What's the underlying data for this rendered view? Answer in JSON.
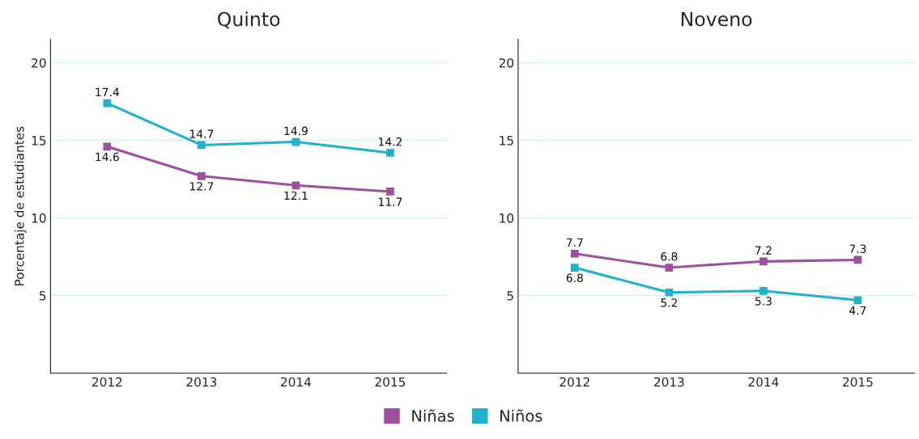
{
  "chart_data": [
    {
      "type": "line",
      "title": "Quinto",
      "ylabel": "Porcentaje de estudiantes",
      "categories": [
        "2012",
        "2013",
        "2014",
        "2015"
      ],
      "series": [
        {
          "name": "Niñas",
          "color": "#9c519c",
          "values": [
            14.6,
            12.7,
            12.1,
            11.7
          ]
        },
        {
          "name": "Niños",
          "color": "#20b2cb",
          "values": [
            17.4,
            14.7,
            14.9,
            14.2
          ]
        }
      ],
      "ylim": [
        0,
        21.5
      ],
      "yticks": [
        5,
        10,
        15,
        20
      ],
      "grid": "y",
      "marker": "square",
      "line_style": "solid",
      "data_labels": true,
      "legend": "bottom"
    },
    {
      "type": "line",
      "title": "Noveno",
      "categories": [
        "2012",
        "2013",
        "2014",
        "2015"
      ],
      "series": [
        {
          "name": "Niñas",
          "color": "#9c519c",
          "values": [
            7.7,
            6.8,
            7.2,
            7.3
          ]
        },
        {
          "name": "Niños",
          "color": "#20b2cb",
          "values": [
            6.8,
            5.2,
            5.3,
            4.7
          ]
        }
      ],
      "ylim": [
        0,
        21.5
      ],
      "yticks": [
        5,
        10,
        15,
        20
      ],
      "grid": "y",
      "marker": "square",
      "line_style": "solid",
      "data_labels": true
    }
  ]
}
